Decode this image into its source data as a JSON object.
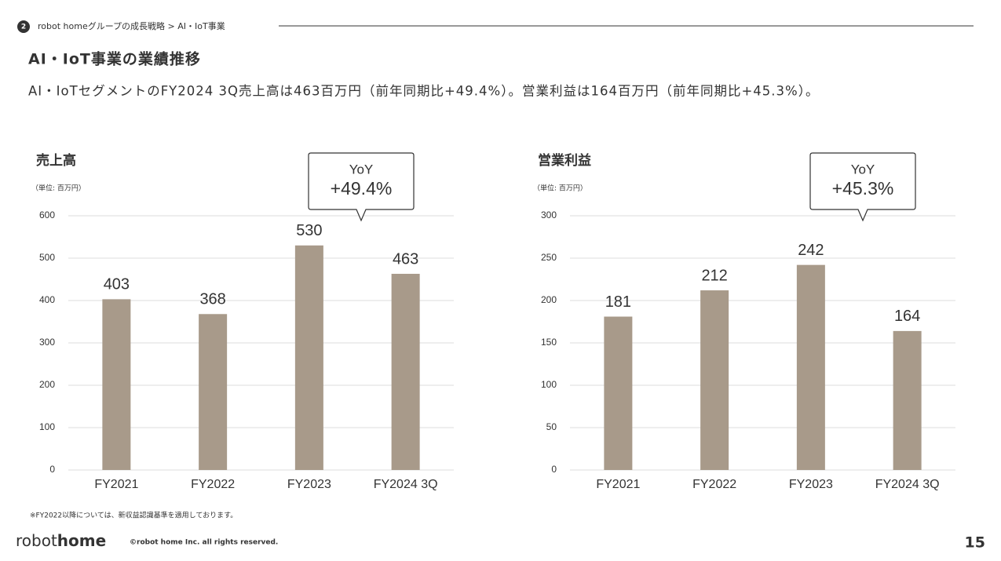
{
  "header": {
    "section_number": "2",
    "breadcrumb": "robot homeグループの成長戦略 > AI・IoT事業"
  },
  "title": "AI・IoT事業の業績推移",
  "subtitle": "AI・IoTセグメントのFY2024 3Q売上高は463百万円（前年同期比+49.4%）。営業利益は164百万円（前年同期比+45.3%）。",
  "chart_data": [
    {
      "type": "bar",
      "title": "売上高",
      "unit_label": "（単位: 百万円）",
      "callout": {
        "title": "YoY",
        "text": "+49.4%"
      },
      "categories": [
        "FY2021",
        "FY2022",
        "FY2023",
        "FY2024 3Q"
      ],
      "values": [
        403,
        368,
        530,
        463
      ],
      "color": "#a89a8a",
      "ylim": [
        0,
        600
      ],
      "yticks": [
        0,
        100,
        200,
        300,
        400,
        500,
        600
      ],
      "grid": true
    },
    {
      "type": "bar",
      "title": "営業利益",
      "unit_label": "（単位: 百万円）",
      "callout": {
        "title": "YoY",
        "text": "+45.3%"
      },
      "categories": [
        "FY2021",
        "FY2022",
        "FY2023",
        "FY2024 3Q"
      ],
      "values": [
        181,
        212,
        242,
        164
      ],
      "color": "#a89a8a",
      "ylim": [
        0,
        300
      ],
      "yticks": [
        0,
        50,
        100,
        150,
        200,
        250,
        300
      ],
      "grid": true
    }
  ],
  "footnote": "※FY2022以降については、新収益認識基準を適用しております。",
  "logo": [
    "robot",
    "home"
  ],
  "copyright": "©robot home Inc. all rights reserved.",
  "page_number": "15"
}
